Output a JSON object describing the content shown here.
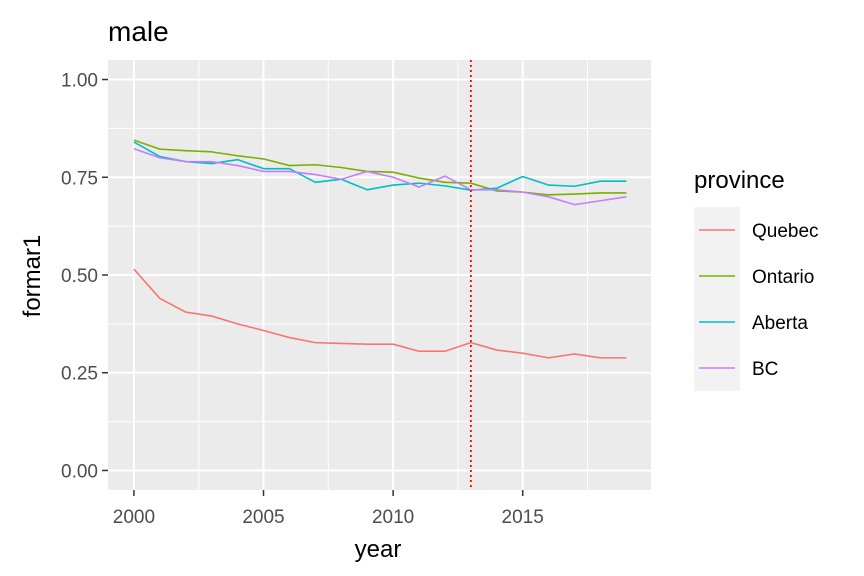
{
  "chart_data": {
    "type": "line",
    "title": "male",
    "xlabel": "year",
    "ylabel": "formar1",
    "xlim": [
      1999.0,
      2019.95
    ],
    "ylim": [
      -0.05,
      1.05
    ],
    "x_ticks": [
      2000,
      2005,
      2010,
      2015
    ],
    "x_tick_labels": [
      "2000",
      "2005",
      "2010",
      "2015"
    ],
    "y_ticks": [
      0,
      0.25,
      0.5,
      0.75,
      1.0
    ],
    "y_tick_labels": [
      "0.00",
      "0.25",
      "0.50",
      "0.75",
      "1.00"
    ],
    "grid": true,
    "legend": {
      "title": "province",
      "position": "right"
    },
    "vline": {
      "x": 2013,
      "color": "#ff0000",
      "style": "dotted"
    },
    "x": [
      2000,
      2001,
      2002,
      2003,
      2004,
      2005,
      2006,
      2007,
      2008,
      2009,
      2010,
      2011,
      2012,
      2013,
      2014,
      2015,
      2016,
      2017,
      2018,
      2019
    ],
    "series": [
      {
        "name": "Quebec",
        "color": "#F8766D",
        "values": [
          0.515,
          0.44,
          0.405,
          0.395,
          0.375,
          0.358,
          0.34,
          0.327,
          0.325,
          0.323,
          0.323,
          0.305,
          0.305,
          0.327,
          0.308,
          0.3,
          0.288,
          0.298,
          0.288,
          0.288
        ]
      },
      {
        "name": "Ontario",
        "color": "#7CAE00",
        "values": [
          0.845,
          0.822,
          0.818,
          0.815,
          0.805,
          0.797,
          0.78,
          0.782,
          0.775,
          0.765,
          0.763,
          0.748,
          0.737,
          0.735,
          0.715,
          0.712,
          0.705,
          0.707,
          0.71,
          0.71
        ]
      },
      {
        "name": "Aberta",
        "color": "#00BFC4",
        "values": [
          0.84,
          0.803,
          0.79,
          0.785,
          0.795,
          0.772,
          0.772,
          0.737,
          0.745,
          0.718,
          0.73,
          0.735,
          0.728,
          0.717,
          0.722,
          0.752,
          0.73,
          0.727,
          0.74,
          0.74
        ]
      },
      {
        "name": "BC",
        "color": "#C77CFF",
        "values": [
          0.823,
          0.8,
          0.79,
          0.79,
          0.78,
          0.765,
          0.765,
          0.757,
          0.745,
          0.765,
          0.75,
          0.725,
          0.753,
          0.718,
          0.718,
          0.712,
          0.7,
          0.68,
          0.69,
          0.7
        ]
      }
    ]
  }
}
